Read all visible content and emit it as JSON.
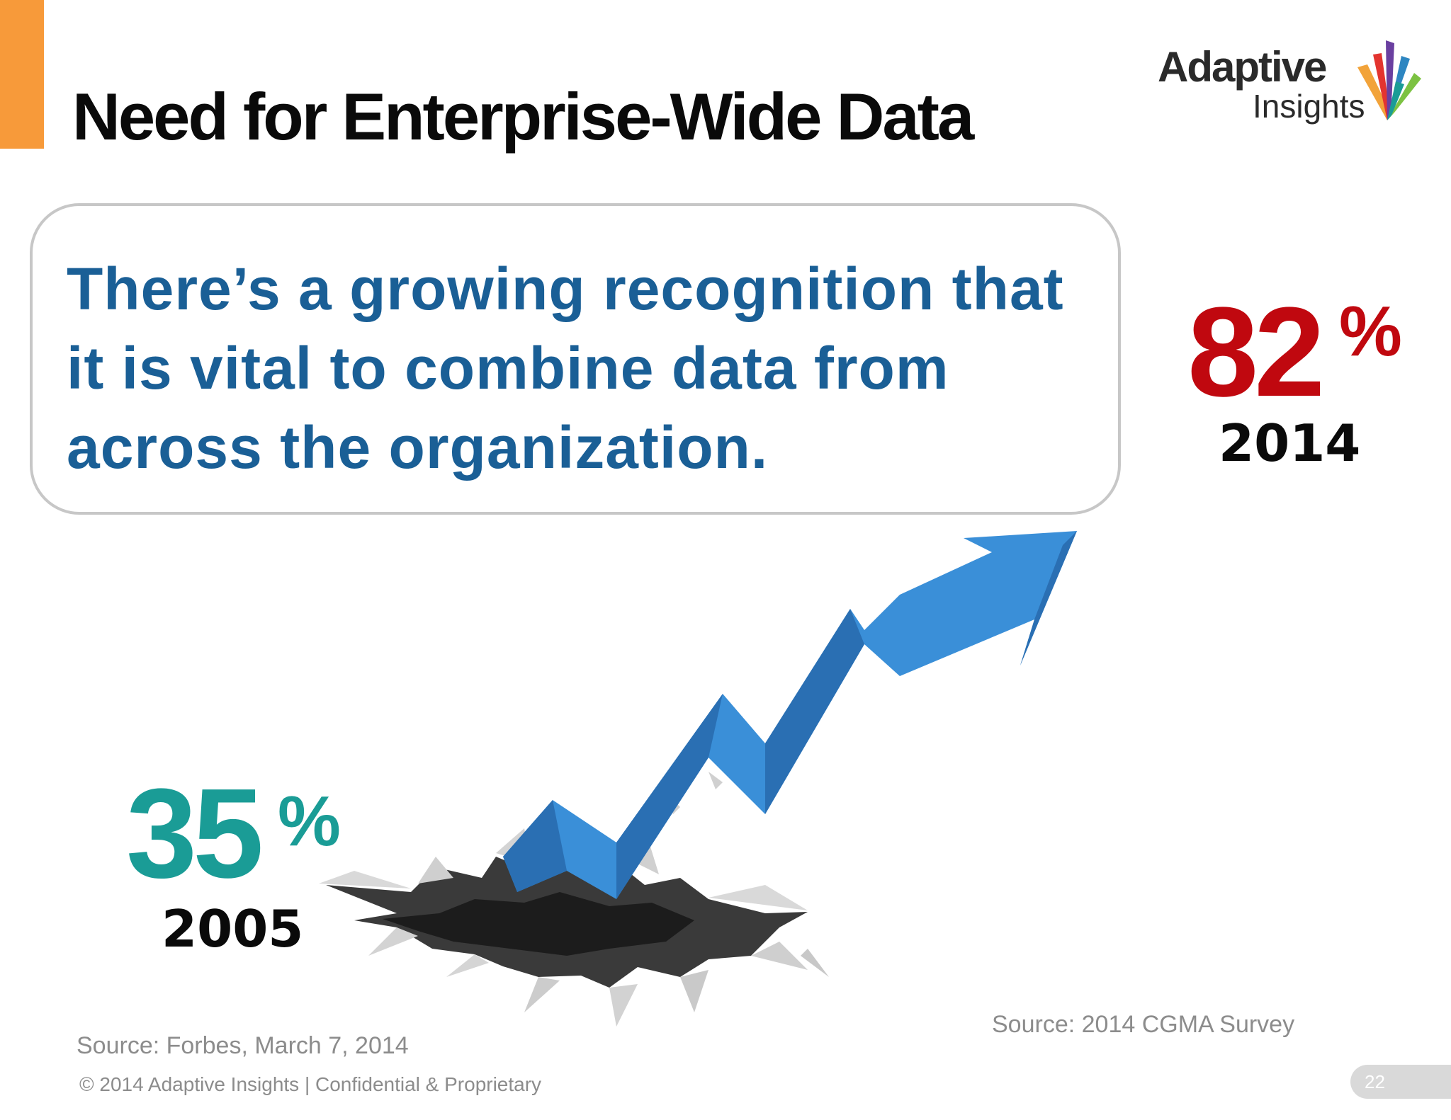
{
  "slide": {
    "title": "Need for Enterprise-Wide Data",
    "accent_color": "#f79a3a"
  },
  "logo": {
    "word1": "Adaptive",
    "word2": "Insights",
    "icon": "adaptive-insights-logo-icon"
  },
  "callout": {
    "text": "There’s a growing recognition that it is vital to combine data from across the organization.",
    "text_color": "#1a5f96"
  },
  "stats": {
    "high": {
      "value": "82",
      "unit": "%",
      "year": "2014",
      "color": "#c0080f"
    },
    "low": {
      "value": "35",
      "unit": "%",
      "year": "2005",
      "color": "#1a9c96"
    }
  },
  "graphic": {
    "icon": "rising-arrow-icon",
    "secondary_icon": "cracked-ground-icon",
    "arrow_color": "#3a8fd8"
  },
  "sources": {
    "left": "Source: Forbes, March 7, 2014",
    "right": "Source: 2014 CGMA Survey"
  },
  "footer": {
    "text": "© 2014 Adaptive Insights  |  Confidential & Proprietary",
    "page_number": "22"
  }
}
